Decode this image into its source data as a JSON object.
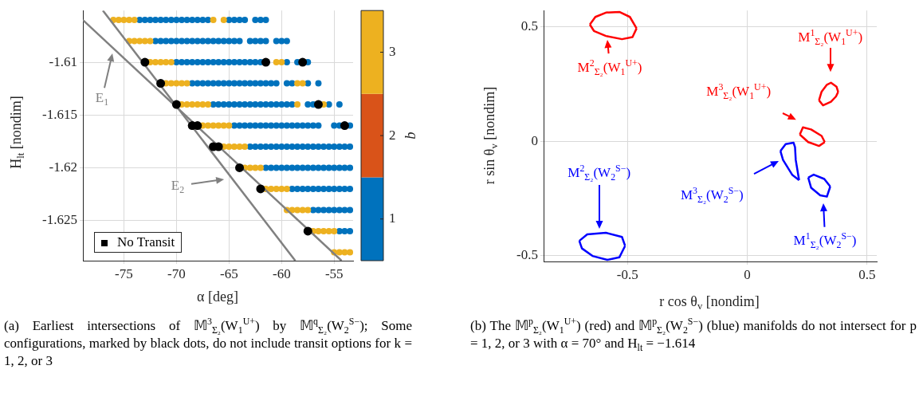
{
  "chart_data": [
    {
      "type": "scatter",
      "xlabel": "α [deg]",
      "ylabel": "H$_{lt}$ [nondim]",
      "clabel": "q",
      "xlim": [
        -78.9,
        -53.2
      ],
      "ylim": [
        -1.6288,
        -1.6051
      ],
      "xticks": [
        -75,
        -70,
        -65,
        -60,
        -55
      ],
      "yticks": [
        -1.61,
        -1.615,
        -1.62,
        -1.625
      ],
      "clim": [
        0.5,
        3.5
      ],
      "cticks": [
        1,
        2,
        3
      ],
      "colors": [
        "#0072bd",
        "#d95319",
        "#edb120"
      ],
      "grid": true,
      "marker": "circle",
      "legend": "bottom left",
      "series": [
        {
          "color": "#edb120",
          "x": [
            -76,
            -75.5,
            -75,
            -74.5,
            -74,
            -66.5,
            -65.5,
            -74.5,
            -74,
            -73.5,
            -73,
            -72.5,
            -72.5,
            -72,
            -71.5,
            -71,
            -70.5,
            -60.5,
            -60,
            -71,
            -70.5,
            -70,
            -69.5,
            -69,
            -58.5,
            -58,
            -69.5,
            -69,
            -68.5,
            -68,
            -67.5,
            -67,
            -58.5,
            -56,
            -67.5,
            -67,
            -66.5,
            -66,
            -65.5,
            -65,
            -65.5,
            -65,
            -64.5,
            -64,
            -63.5,
            -63.5,
            -63,
            -62.5,
            -62,
            -61.5,
            -61,
            -60.5,
            -60,
            -59.5,
            -59.5,
            -59,
            -58.5,
            -58,
            -57.5,
            -57,
            -56.5,
            -56,
            -55.5,
            -55,
            -55,
            -54.5,
            -54,
            -53.5
          ],
          "values": [
            -1.606,
            -1.606,
            -1.606,
            -1.606,
            -1.606,
            -1.606,
            -1.606,
            -1.608,
            -1.608,
            -1.608,
            -1.608,
            -1.608,
            -1.61,
            -1.61,
            -1.61,
            -1.61,
            -1.61,
            -1.61,
            -1.61,
            -1.612,
            -1.612,
            -1.612,
            -1.612,
            -1.612,
            -1.612,
            -1.612,
            -1.614,
            -1.614,
            -1.614,
            -1.614,
            -1.614,
            -1.614,
            -1.614,
            -1.614,
            -1.616,
            -1.616,
            -1.616,
            -1.616,
            -1.616,
            -1.616,
            -1.618,
            -1.618,
            -1.618,
            -1.618,
            -1.618,
            -1.62,
            -1.62,
            -1.62,
            -1.62,
            -1.622,
            -1.622,
            -1.622,
            -1.622,
            -1.622,
            -1.624,
            -1.624,
            -1.624,
            -1.624,
            -1.624,
            -1.626,
            -1.626,
            -1.626,
            -1.626,
            -1.626,
            -1.628,
            -1.628,
            -1.628,
            -1.628
          ]
        },
        {
          "color": "#0072bd",
          "x": [
            -73.5,
            -73,
            -72.5,
            -72,
            -71.5,
            -71,
            -70.5,
            -70,
            -69.5,
            -69,
            -68.5,
            -68,
            -67.5,
            -67,
            -65,
            -64.5,
            -64,
            -63.5,
            -62.5,
            -62,
            -61.5,
            -72,
            -71.5,
            -71,
            -70.5,
            -70,
            -69.5,
            -69,
            -68.5,
            -68,
            -67.5,
            -67,
            -66.5,
            -66,
            -65.5,
            -65,
            -64.5,
            -64,
            -63,
            -62.5,
            -62,
            -61.5,
            -60.5,
            -60,
            -59.5,
            -70,
            -69.5,
            -69,
            -68.5,
            -68,
            -67.5,
            -67,
            -66.5,
            -66,
            -65.5,
            -65,
            -64.5,
            -64,
            -63.5,
            -63,
            -62.5,
            -62,
            -59.5,
            -58.5,
            -57.5,
            -68.5,
            -68,
            -67.5,
            -67,
            -66.5,
            -66,
            -65.5,
            -65,
            -64.5,
            -64,
            -63.5,
            -63,
            -62.5,
            -62,
            -61.5,
            -61,
            -60.5,
            -59.5,
            -59,
            -57.5,
            -56.5,
            -66.5,
            -66,
            -65.5,
            -65,
            -64.5,
            -64,
            -63.5,
            -63,
            -62.5,
            -62,
            -61.5,
            -61,
            -60.5,
            -60,
            -59.5,
            -59,
            -57.5,
            -57,
            -55.5,
            -54.5,
            -64.5,
            -64,
            -63.5,
            -63,
            -62.5,
            -62,
            -61.5,
            -61,
            -60.5,
            -60,
            -59.5,
            -59,
            -58.5,
            -58,
            -57.5,
            -57,
            -56.5,
            -55,
            -54.5,
            -53.5,
            -63,
            -62.5,
            -62,
            -61.5,
            -61,
            -60.5,
            -60,
            -59.5,
            -59,
            -58.5,
            -58,
            -57.5,
            -57,
            -56.5,
            -56,
            -55.5,
            -55,
            -54.5,
            -54,
            -53.5,
            -61.5,
            -61,
            -60.5,
            -60,
            -59.5,
            -59,
            -58.5,
            -58,
            -57.5,
            -57,
            -56.5,
            -56,
            -55.5,
            -55,
            -54.5,
            -54,
            -53.5,
            -59,
            -58.5,
            -58,
            -57.5,
            -57,
            -56.5,
            -56,
            -55.5,
            -55,
            -54.5,
            -54,
            -53.5,
            -57,
            -56.5,
            -56,
            -55.5,
            -55,
            -54.5,
            -54,
            -53.5,
            -54.5,
            -54,
            -53.5
          ],
          "values": [
            -1.606,
            -1.606,
            -1.606,
            -1.606,
            -1.606,
            -1.606,
            -1.606,
            -1.606,
            -1.606,
            -1.606,
            -1.606,
            -1.606,
            -1.606,
            -1.606,
            -1.606,
            -1.606,
            -1.606,
            -1.606,
            -1.606,
            -1.606,
            -1.606,
            -1.608,
            -1.608,
            -1.608,
            -1.608,
            -1.608,
            -1.608,
            -1.608,
            -1.608,
            -1.608,
            -1.608,
            -1.608,
            -1.608,
            -1.608,
            -1.608,
            -1.608,
            -1.608,
            -1.608,
            -1.608,
            -1.608,
            -1.608,
            -1.608,
            -1.608,
            -1.608,
            -1.608,
            -1.61,
            -1.61,
            -1.61,
            -1.61,
            -1.61,
            -1.61,
            -1.61,
            -1.61,
            -1.61,
            -1.61,
            -1.61,
            -1.61,
            -1.61,
            -1.61,
            -1.61,
            -1.61,
            -1.61,
            -1.61,
            -1.61,
            -1.61,
            -1.612,
            -1.612,
            -1.612,
            -1.612,
            -1.612,
            -1.612,
            -1.612,
            -1.612,
            -1.612,
            -1.612,
            -1.612,
            -1.612,
            -1.612,
            -1.612,
            -1.612,
            -1.612,
            -1.612,
            -1.612,
            -1.612,
            -1.612,
            -1.612,
            -1.614,
            -1.614,
            -1.614,
            -1.614,
            -1.614,
            -1.614,
            -1.614,
            -1.614,
            -1.614,
            -1.614,
            -1.614,
            -1.614,
            -1.614,
            -1.614,
            -1.614,
            -1.614,
            -1.614,
            -1.614,
            -1.614,
            -1.614,
            -1.616,
            -1.616,
            -1.616,
            -1.616,
            -1.616,
            -1.616,
            -1.616,
            -1.616,
            -1.616,
            -1.616,
            -1.616,
            -1.616,
            -1.616,
            -1.616,
            -1.616,
            -1.616,
            -1.616,
            -1.616,
            -1.616,
            -1.616,
            -1.618,
            -1.618,
            -1.618,
            -1.618,
            -1.618,
            -1.618,
            -1.618,
            -1.618,
            -1.618,
            -1.618,
            -1.618,
            -1.618,
            -1.618,
            -1.618,
            -1.618,
            -1.618,
            -1.618,
            -1.618,
            -1.618,
            -1.618,
            -1.62,
            -1.62,
            -1.62,
            -1.62,
            -1.62,
            -1.62,
            -1.62,
            -1.62,
            -1.62,
            -1.62,
            -1.62,
            -1.62,
            -1.62,
            -1.62,
            -1.62,
            -1.62,
            -1.62,
            -1.622,
            -1.622,
            -1.622,
            -1.622,
            -1.622,
            -1.622,
            -1.622,
            -1.622,
            -1.622,
            -1.622,
            -1.622,
            -1.622,
            -1.624,
            -1.624,
            -1.624,
            -1.624,
            -1.624,
            -1.624,
            -1.624,
            -1.624,
            -1.626,
            -1.626,
            -1.626
          ]
        },
        {
          "name": "No Transit",
          "color": "#000000",
          "x": [
            -73,
            -61.5,
            -58,
            -71.5,
            -70,
            -56.5,
            -68.5,
            -68,
            -54,
            -66.5,
            -66,
            -64,
            -62,
            -57.5
          ],
          "values": [
            -1.61,
            -1.61,
            -1.61,
            -1.612,
            -1.614,
            -1.614,
            -1.616,
            -1.616,
            -1.616,
            -1.618,
            -1.618,
            -1.62,
            -1.622,
            -1.626
          ]
        },
        {
          "type": "line",
          "marker": "none",
          "color": "#808080",
          "x": [
            -78.9,
            -54.3
          ],
          "values": [
            -1.606,
            -1.6288
          ]
        },
        {
          "type": "line",
          "marker": "none",
          "color": "#808080",
          "x": [
            -77,
            -58.7
          ],
          "values": [
            -1.6051,
            -1.6288
          ]
        }
      ],
      "annotations": [
        "E$_{1}$",
        "E$_{2}$",
        "(a) Earliest intersections of 𝕄$^{3}$$_{Σ₂}$(W$_{1}$$^{U+}$) by 𝕄$^{q}$$_{Σ₂}$(W$_{2}$$^{S−}$); Some configurations, marked by black dots, do not include transit options for k = 1, 2, or 3"
      ]
    },
    {
      "type": "line",
      "xlabel": "r cos θ$_{v}$ [nondim]",
      "ylabel": "r sin θ$_{v}$ [nondim]",
      "xlim": [
        -0.85,
        0.54
      ],
      "ylim": [
        -0.525,
        0.57
      ],
      "xticks": [
        -0.5,
        0,
        0.5
      ],
      "yticks": [
        -0.5,
        0,
        0.5
      ],
      "grid": true,
      "series": [
        {
          "color": "#ff0000",
          "x": [
            -0.657,
            -0.634,
            -0.59,
            -0.534,
            -0.49,
            -0.462
          ],
          "values": [
            0.509,
            0.542,
            0.561,
            0.564,
            0.542,
            0.492
          ]
        },
        {
          "color": "#ff0000",
          "x": [
            -0.657,
            -0.64,
            -0.59,
            -0.523,
            -0.479,
            -0.462
          ],
          "values": [
            0.509,
            0.481,
            0.459,
            0.445,
            0.454,
            0.492
          ]
        },
        {
          "color": "#ff0000",
          "x": [
            0.299,
            0.31,
            0.332,
            0.349,
            0.372,
            0.379
          ],
          "values": [
            0.178,
            0.216,
            0.246,
            0.255,
            0.238,
            0.215
          ]
        },
        {
          "color": "#ff0000",
          "x": [
            0.299,
            0.316,
            0.349,
            0.37,
            0.379
          ],
          "values": [
            0.178,
            0.156,
            0.172,
            0.195,
            0.215
          ]
        },
        {
          "color": "#ff0000",
          "x": [
            0.219,
            0.232,
            0.266,
            0.31,
            0.323
          ],
          "values": [
            0.029,
            0.06,
            0.051,
            0.023,
            -0.004
          ]
        },
        {
          "color": "#ff0000",
          "x": [
            0.219,
            0.254,
            0.299,
            0.323
          ],
          "values": [
            0.029,
            -0.004,
            -0.021,
            -0.004
          ]
        },
        {
          "color": "#0000ff",
          "x": [
            -0.701,
            -0.668,
            -0.59,
            -0.523,
            -0.51
          ],
          "values": [
            -0.435,
            -0.407,
            -0.4,
            -0.418,
            -0.457
          ]
        },
        {
          "color": "#0000ff",
          "x": [
            -0.701,
            -0.69,
            -0.646,
            -0.584,
            -0.534,
            -0.51
          ],
          "values": [
            -0.435,
            -0.468,
            -0.501,
            -0.518,
            -0.507,
            -0.457
          ]
        },
        {
          "color": "#0000ff",
          "x": [
            0.138,
            0.16,
            0.193,
            0.199,
            0.202,
            0.216
          ],
          "values": [
            -0.043,
            -0.013,
            -0.007,
            -0.026,
            -0.082,
            -0.17
          ]
        },
        {
          "color": "#0000ff",
          "x": [
            0.138,
            0.149,
            0.188,
            0.216
          ],
          "values": [
            -0.043,
            -0.082,
            -0.148,
            -0.17
          ]
        },
        {
          "color": "#0000ff",
          "x": [
            0.254,
            0.277,
            0.321,
            0.346
          ],
          "values": [
            -0.159,
            -0.146,
            -0.165,
            -0.198
          ]
        },
        {
          "color": "#0000ff",
          "x": [
            0.254,
            0.266,
            0.304,
            0.332,
            0.346
          ],
          "values": [
            -0.159,
            -0.203,
            -0.236,
            -0.242,
            -0.198
          ]
        }
      ],
      "annotations": [
        "M$^{2}$$_{Σ₂}$(W$_{1}$$^{U+}$)",
        "M$^{1}$$_{Σ₂}$(W$_{1}$$^{U+}$)",
        "M$^{3}$$_{Σ₂}$(W$_{1}$$^{U+}$)",
        "M$^{2}$$_{Σ₂}$(W$_{2}$$^{S−}$)",
        "M$^{3}$$_{Σ₂}$(W$_{2}$$^{S−}$)",
        "M$^{1}$$_{Σ₂}$(W$_{2}$$^{S−}$)",
        "(b) The 𝕄$^{p}$$_{Σ₂}$(W$_{1}$$^{U+}$) (red) and 𝕄$^{p}$$_{Σ₂}$(W$_{2}$$^{S−}$) (blue) manifolds do not intersect for p = 1, 2, or 3 with α = 70° and H$_{lt}$ = −1.614"
      ]
    }
  ]
}
